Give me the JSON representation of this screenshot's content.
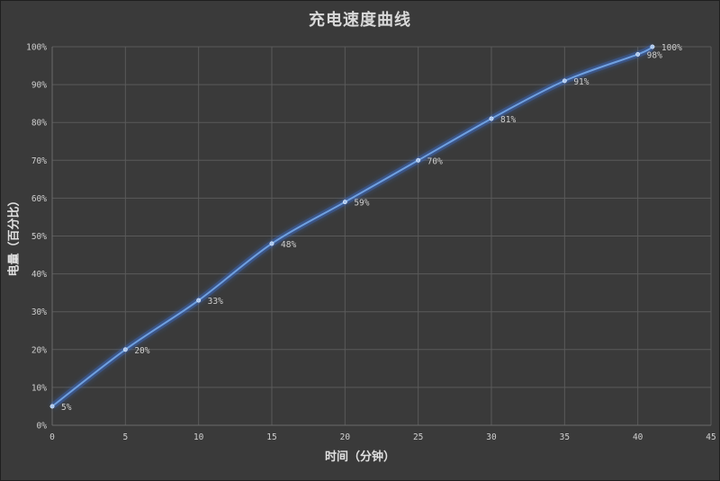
{
  "chart_data": {
    "type": "line",
    "title": "充电速度曲线",
    "xlabel": "时间（分钟）",
    "ylabel": "电量（百分比）",
    "xlim": [
      0,
      45
    ],
    "ylim": [
      0,
      100
    ],
    "x_ticks": [
      "0",
      "5",
      "10",
      "15",
      "20",
      "25",
      "30",
      "35",
      "40",
      "45"
    ],
    "y_ticks": [
      "0%",
      "10%",
      "20%",
      "30%",
      "40%",
      "50%",
      "60%",
      "70%",
      "80%",
      "90%",
      "100%"
    ],
    "grid": true,
    "legend": "none",
    "series": [
      {
        "x": [
          0,
          5,
          10,
          15,
          20,
          25,
          30,
          35,
          40,
          41
        ],
        "y": [
          5,
          20,
          33,
          48,
          59,
          70,
          81,
          91,
          98,
          100
        ],
        "labels": [
          "5%",
          "20%",
          "33%",
          "48%",
          "59%",
          "70%",
          "81%",
          "91%",
          "98%",
          "100%"
        ]
      }
    ],
    "colors": {
      "line": "#6fa0e0",
      "glow": "#3b6fd0",
      "grid": "#5a5a5a",
      "text": "#d0d0d0",
      "background": "#3a3a3a"
    }
  }
}
